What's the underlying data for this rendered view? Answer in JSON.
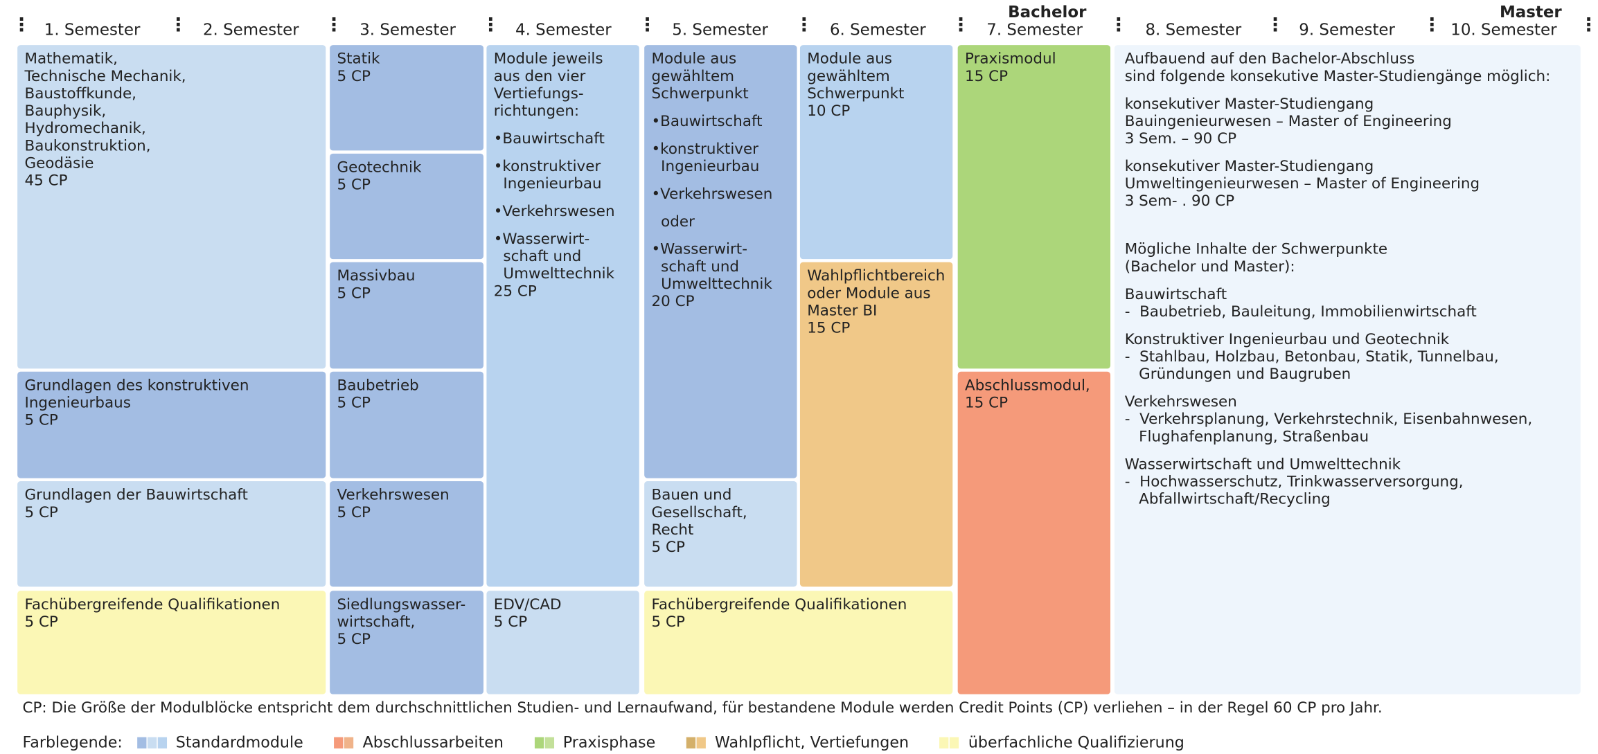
{
  "header": {
    "semesters": [
      "1. Semester",
      "2. Semester",
      "3. Semester",
      "4. Semester",
      "5. Semester",
      "6. Semester",
      "7. Semester",
      "8. Semester",
      "9. Semester",
      "10. Semester"
    ],
    "bachelor": "Bachelor",
    "master": "Master"
  },
  "blocks": [
    {
      "lines": [
        "Mathematik,",
        "Technische Mechanik,",
        "Baustoffkunde,",
        "Bauphysik,",
        "Hydromechanik,",
        "Baukonstruktion,",
        "Geodäsie",
        "45 CP"
      ]
    },
    {
      "lines": [
        "Grundlagen des konstruktiven",
        "Ingenieurbaus",
        "5 CP"
      ]
    },
    {
      "lines": [
        "Grundlagen der Bauwirtschaft",
        "5 CP"
      ]
    },
    {
      "lines": [
        "Fachübergreifende Qualifikationen",
        "5 CP"
      ]
    },
    {
      "lines": [
        "Statik",
        "5 CP"
      ]
    },
    {
      "lines": [
        "Geotechnik",
        "5 CP"
      ]
    },
    {
      "lines": [
        "Massivbau",
        "5 CP"
      ]
    },
    {
      "lines": [
        "Baubetrieb",
        "5 CP"
      ]
    },
    {
      "lines": [
        "Verkehrswesen",
        "5 CP"
      ]
    },
    {
      "lines": [
        "Siedlungswasser-",
        "wirtschaft,",
        "5 CP"
      ]
    },
    {
      "lines": [
        "Module jeweils",
        "aus den vier",
        "Vertiefungs-",
        "richtungen:",
        "",
        "•Bauwirtschaft",
        "",
        "•konstruktiver",
        "  Ingenieurbau",
        "",
        "•Verkehrswesen",
        "",
        "•Wasserwirt-",
        "  schaft und",
        "  Umwelttechnik",
        "25 CP"
      ]
    },
    {
      "lines": [
        "EDV/CAD",
        "5 CP"
      ]
    },
    {
      "lines": [
        "Module aus",
        "gewähltem",
        "Schwerpunkt",
        "",
        "•Bauwirtschaft",
        "",
        "•konstruktiver",
        "  Ingenieurbau",
        "",
        "•Verkehrswesen",
        "",
        "  oder",
        "",
        "•Wasserwirt-",
        "  schaft und",
        "  Umwelttechnik",
        "20 CP"
      ]
    },
    {
      "lines": [
        "Bauen und",
        "Gesellschaft,",
        "Recht",
        "5 CP"
      ]
    },
    {
      "lines": [
        "Fachübergreifende Qualifikationen",
        "5 CP"
      ]
    },
    {
      "lines": [
        "Module aus",
        "gewähltem",
        "Schwerpunkt",
        "10 CP"
      ]
    },
    {
      "lines": [
        "Wahlpflichtbereich",
        "oder Module aus",
        "Master BI",
        "15 CP"
      ]
    },
    {
      "lines": [
        "Praxismodul",
        "15 CP"
      ]
    },
    {
      "lines": [
        "Abschlussmodul,",
        "15 CP"
      ]
    },
    {
      "lines": [
        "Aufbauend auf den Bachelor-Abschluss",
        "sind folgende konsekutive Master-Studiengänge möglich:",
        "",
        "konsekutiver Master-Studiengang",
        "Bauingenieurwesen – Master of Engineering",
        "3 Sem. – 90 CP",
        "",
        "konsekutiver Master-Studiengang",
        "Umweltingenieurwesen – Master of Engineering",
        "3 Sem- . 90 CP",
        "",
        "",
        "",
        "Mögliche Inhalte der Schwerpunkte",
        "(Bachelor und Master):",
        "",
        "Bauwirtschaft",
        "-  Baubetrieb, Bauleitung, Immobilienwirtschaft",
        "",
        "Konstruktiver Ingenieurbau und Geotechnik",
        "-  Stahlbau, Holzbau, Betonbau, Statik, Tunnelbau,",
        "   Gründungen und Baugruben",
        "",
        "Verkehrswesen",
        "-  Verkehrsplanung, Verkehrstechnik, Eisenbahnwesen,",
        "   Flughafenplanung, Straßenbau",
        "",
        "Wasserwirtschaft und Umwelttechnik",
        "-  Hochwasserschutz, Trinkwasserversorgung,",
        "   Abfallwirtschaft/Recycling"
      ]
    }
  ],
  "footnote": "CP: Die Größe der Modulblöcke entspricht dem durchschnittlichen Studien- und Lernaufwand, für bestandene Module werden Credit Points (CP) verliehen – in der Regel 60 CP pro Jahr.",
  "legend": {
    "title": "Farblegende:",
    "items": [
      "Standardmodule",
      "Abschlussarbeiten",
      "Praxisphase",
      "Wahlpflicht, Vertiefungen",
      "überfachliche Qualifizierung"
    ]
  }
}
